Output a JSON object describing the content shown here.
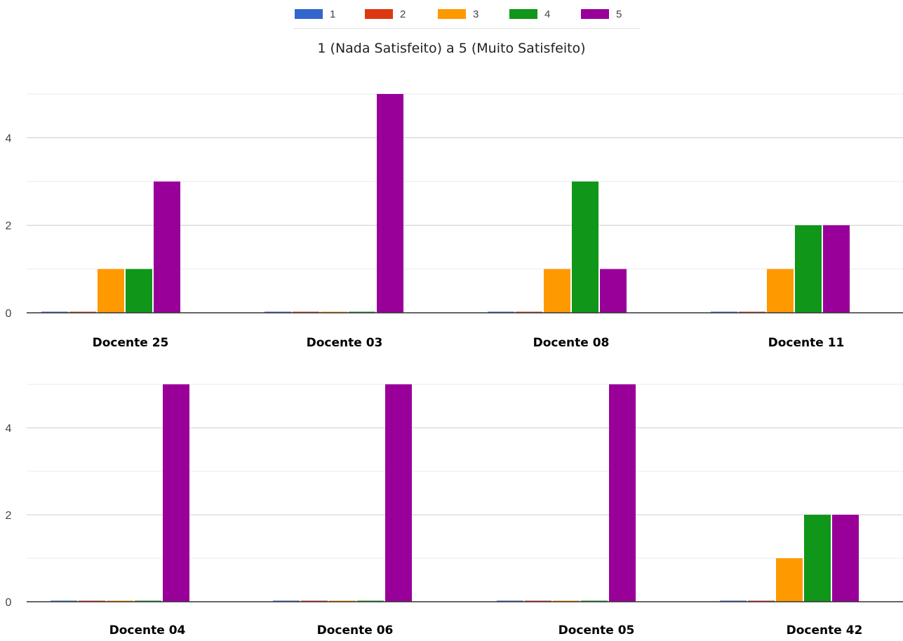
{
  "subtitle": "1 (Nada Satisfeito) a 5 (Muito Satisfeito)",
  "legend": [
    {
      "label": "1",
      "color": "#3366cc"
    },
    {
      "label": "2",
      "color": "#dc3912"
    },
    {
      "label": "3",
      "color": "#ff9900"
    },
    {
      "label": "4",
      "color": "#109618"
    },
    {
      "label": "5",
      "color": "#990099"
    }
  ],
  "chart_data": [
    {
      "type": "bar",
      "categories": [
        "Docente 25",
        "Docente 03",
        "Docente 08",
        "Docente 11"
      ],
      "series": [
        {
          "name": "1",
          "values": [
            0,
            0,
            0,
            0
          ]
        },
        {
          "name": "2",
          "values": [
            0,
            0,
            0,
            0
          ]
        },
        {
          "name": "3",
          "values": [
            1,
            0,
            1,
            1
          ]
        },
        {
          "name": "4",
          "values": [
            1,
            0,
            3,
            2
          ]
        },
        {
          "name": "5",
          "values": [
            3,
            5,
            1,
            2
          ]
        }
      ],
      "yticks": [
        "0",
        "2",
        "4"
      ],
      "ylim": [
        0,
        5
      ],
      "grid": true,
      "legend_position": "top"
    },
    {
      "type": "bar",
      "categories": [
        "Docente 04",
        "Docente 06",
        "Docente 05",
        "Docente 42"
      ],
      "series": [
        {
          "name": "1",
          "values": [
            0,
            0,
            0,
            0
          ]
        },
        {
          "name": "2",
          "values": [
            0,
            0,
            0,
            0
          ]
        },
        {
          "name": "3",
          "values": [
            0,
            0,
            0,
            1
          ]
        },
        {
          "name": "4",
          "values": [
            0,
            0,
            0,
            2
          ]
        },
        {
          "name": "5",
          "values": [
            5,
            5,
            5,
            2
          ]
        }
      ],
      "yticks": [
        "0",
        "2",
        "4"
      ],
      "ylim": [
        0,
        5
      ],
      "grid": true,
      "legend_position": "top"
    }
  ]
}
